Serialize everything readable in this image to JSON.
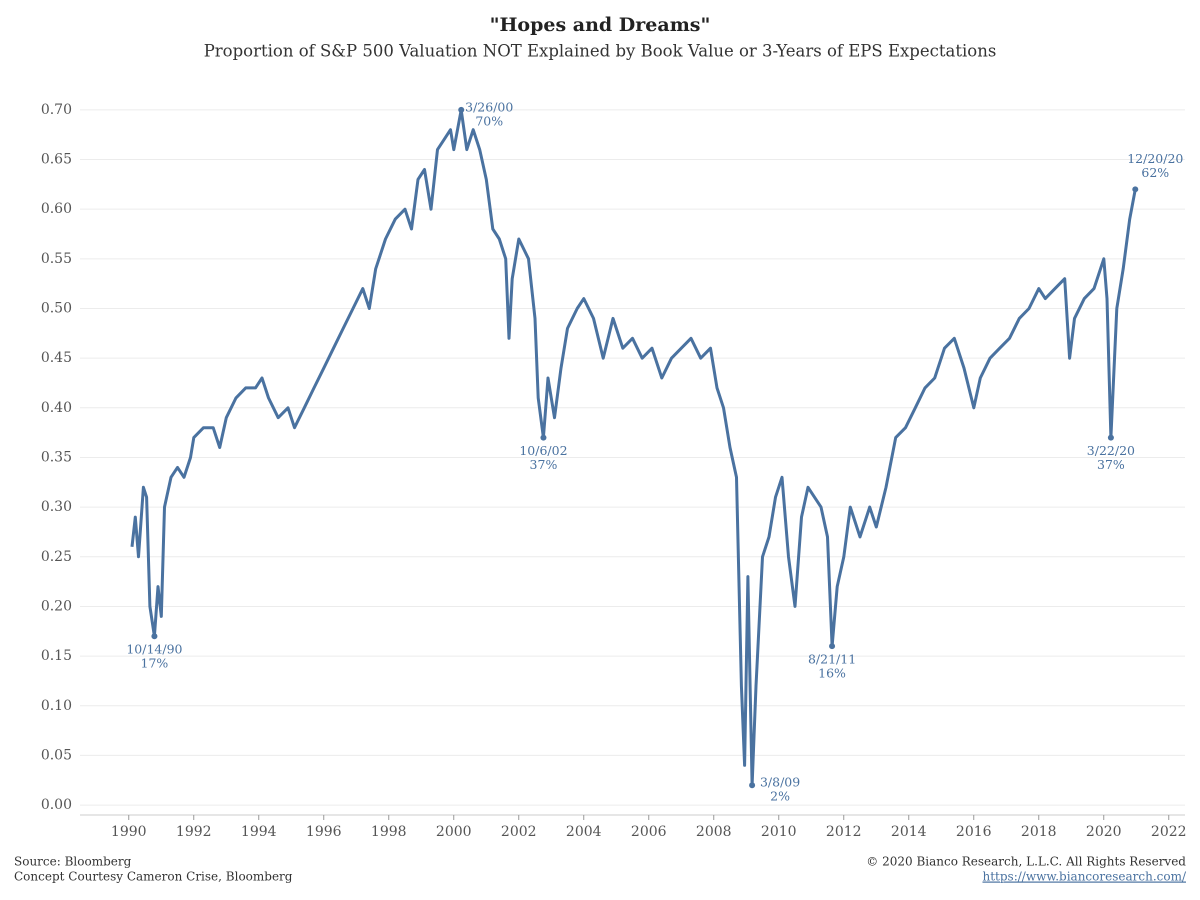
{
  "chart_data": {
    "type": "line",
    "title": "\"Hopes and Dreams\"",
    "subtitle": "Proportion of S&P 500 Valuation NOT Explained by Book Value or 3-Years of EPS Expectations",
    "source": "Source: Bloomberg",
    "credit": "Concept Courtesy Cameron Crise, Bloomberg",
    "copyright": "© 2020 Bianco Research, L.L.C. All Rights Reserved",
    "url": "https://www.biancoresearch.com/",
    "color": "#4a72a0",
    "grid": true,
    "xlim": [
      1988.5,
      2022.5
    ],
    "ylim": [
      -0.01,
      0.72
    ],
    "xticks": [
      1990,
      1992,
      1994,
      1996,
      1998,
      2000,
      2002,
      2004,
      2006,
      2008,
      2010,
      2012,
      2014,
      2016,
      2018,
      2020,
      2022
    ],
    "yticks": [
      {
        "value": 0,
        "label": "0.00"
      },
      0.05,
      {
        "value": 0.1,
        "label": "0.10"
      },
      0.15,
      {
        "value": 0.2,
        "label": "0.20"
      },
      0.25,
      {
        "value": 0.3,
        "label": "0.30"
      },
      0.35,
      {
        "value": 0.4,
        "label": "0.40"
      },
      0.45,
      {
        "value": 0.5,
        "label": "0.50"
      },
      0.55,
      {
        "value": 0.6,
        "label": "0.60"
      },
      0.65,
      {
        "value": 0.7,
        "label": "0.70"
      }
    ],
    "x": [
      1990.1,
      1990.2,
      1990.3,
      1990.45,
      1990.55,
      1990.65,
      1990.79,
      1990.9,
      1991.0,
      1991.1,
      1991.3,
      1991.5,
      1991.7,
      1991.9,
      1992.0,
      1992.3,
      1992.6,
      1992.8,
      1993.0,
      1993.3,
      1993.6,
      1993.9,
      1994.1,
      1994.3,
      1994.6,
      1994.9,
      1995.1,
      1995.4,
      1995.7,
      1996.0,
      1996.3,
      1996.6,
      1996.9,
      1997.2,
      1997.4,
      1997.6,
      1997.9,
      1998.2,
      1998.5,
      1998.7,
      1998.9,
      1999.1,
      1999.3,
      1999.5,
      1999.7,
      1999.9,
      2000.0,
      2000.23,
      2000.4,
      2000.6,
      2000.8,
      2001.0,
      2001.2,
      2001.4,
      2001.6,
      2001.7,
      2001.8,
      2002.0,
      2002.3,
      2002.5,
      2002.6,
      2002.76,
      2002.9,
      2003.1,
      2003.3,
      2003.5,
      2003.8,
      2004.0,
      2004.3,
      2004.6,
      2004.9,
      2005.2,
      2005.5,
      2005.8,
      2006.1,
      2006.4,
      2006.7,
      2007.0,
      2007.3,
      2007.6,
      2007.9,
      2008.1,
      2008.3,
      2008.5,
      2008.7,
      2008.85,
      2008.95,
      2009.05,
      2009.18,
      2009.3,
      2009.5,
      2009.7,
      2009.9,
      2010.1,
      2010.3,
      2010.5,
      2010.7,
      2010.9,
      2011.1,
      2011.3,
      2011.5,
      2011.64,
      2011.8,
      2012.0,
      2012.2,
      2012.5,
      2012.8,
      2013.0,
      2013.3,
      2013.6,
      2013.9,
      2014.2,
      2014.5,
      2014.8,
      2015.1,
      2015.4,
      2015.7,
      2016.0,
      2016.2,
      2016.5,
      2016.8,
      2017.1,
      2017.4,
      2017.7,
      2018.0,
      2018.2,
      2018.5,
      2018.8,
      2018.95,
      2019.1,
      2019.4,
      2019.7,
      2020.0,
      2020.1,
      2020.22,
      2020.4,
      2020.6,
      2020.8,
      2020.97
    ],
    "series": [
      {
        "values": [
          0.26,
          0.29,
          0.25,
          0.32,
          0.31,
          0.2,
          0.17,
          0.22,
          0.19,
          0.3,
          0.33,
          0.34,
          0.33,
          0.35,
          0.37,
          0.38,
          0.38,
          0.36,
          0.39,
          0.41,
          0.42,
          0.42,
          0.43,
          0.41,
          0.39,
          0.4,
          0.38,
          0.4,
          0.42,
          0.44,
          0.46,
          0.48,
          0.5,
          0.52,
          0.5,
          0.54,
          0.57,
          0.59,
          0.6,
          0.58,
          0.63,
          0.64,
          0.6,
          0.66,
          0.67,
          0.68,
          0.66,
          0.7,
          0.66,
          0.68,
          0.66,
          0.63,
          0.58,
          0.57,
          0.55,
          0.47,
          0.53,
          0.57,
          0.55,
          0.49,
          0.41,
          0.37,
          0.43,
          0.39,
          0.44,
          0.48,
          0.5,
          0.51,
          0.49,
          0.45,
          0.49,
          0.46,
          0.47,
          0.45,
          0.46,
          0.43,
          0.45,
          0.46,
          0.47,
          0.45,
          0.46,
          0.42,
          0.4,
          0.36,
          0.33,
          0.12,
          0.04,
          0.23,
          0.02,
          0.12,
          0.25,
          0.27,
          0.31,
          0.33,
          0.25,
          0.2,
          0.29,
          0.32,
          0.31,
          0.3,
          0.27,
          0.16,
          0.22,
          0.25,
          0.3,
          0.27,
          0.3,
          0.28,
          0.32,
          0.37,
          0.38,
          0.4,
          0.42,
          0.43,
          0.46,
          0.47,
          0.44,
          0.4,
          0.43,
          0.45,
          0.46,
          0.47,
          0.49,
          0.5,
          0.52,
          0.51,
          0.52,
          0.53,
          0.45,
          0.49,
          0.51,
          0.52,
          0.55,
          0.51,
          0.37,
          0.5,
          0.54,
          0.59,
          0.62
        ]
      }
    ],
    "annotations": [
      {
        "x": 1990.79,
        "y": 0.17,
        "label": "10/14/90",
        "value_label": "17%",
        "position": "below"
      },
      {
        "x": 2000.23,
        "y": 0.7,
        "label": "3/26/00",
        "value_label": "70%",
        "position": "right"
      },
      {
        "x": 2002.76,
        "y": 0.37,
        "label": "10/6/02",
        "value_label": "37%",
        "position": "below"
      },
      {
        "x": 2009.18,
        "y": 0.02,
        "label": "3/8/09",
        "value_label": "2%",
        "position": "right"
      },
      {
        "x": 2011.64,
        "y": 0.16,
        "label": "8/21/11",
        "value_label": "16%",
        "position": "below"
      },
      {
        "x": 2020.22,
        "y": 0.37,
        "label": "3/22/20",
        "value_label": "37%",
        "position": "below"
      },
      {
        "x": 2020.97,
        "y": 0.62,
        "label": "12/20/20",
        "value_label": "62%",
        "position": "above"
      }
    ]
  }
}
